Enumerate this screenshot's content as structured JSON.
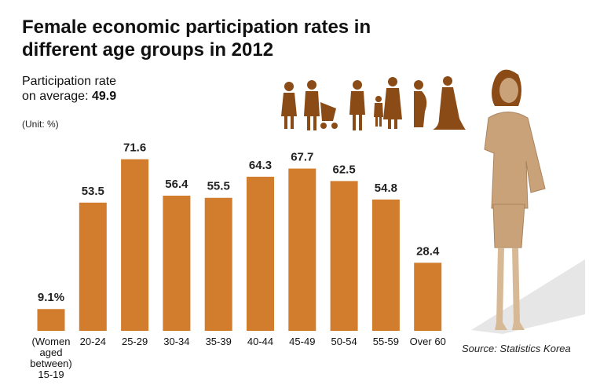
{
  "chart_data": {
    "type": "bar",
    "title": "Female economic participation rates in different age groups in 2012",
    "average_label": "Participation rate on average:",
    "average": 49.9,
    "unit": "(Unit: %)",
    "source": "Source: Statistics Korea",
    "categories": [
      "(Women aged between) 15-19",
      "20-24",
      "25-29",
      "30-34",
      "35-39",
      "40-44",
      "45-49",
      "50-54",
      "55-59",
      "Over 60"
    ],
    "values": [
      9.1,
      53.5,
      71.6,
      56.4,
      55.5,
      64.3,
      67.7,
      62.5,
      54.8,
      28.4
    ],
    "value_labels": [
      "9.1%",
      "53.5",
      "71.6",
      "56.4",
      "55.5",
      "64.3",
      "67.7",
      "62.5",
      "54.8",
      "28.4"
    ],
    "color": "#d27d2d"
  }
}
